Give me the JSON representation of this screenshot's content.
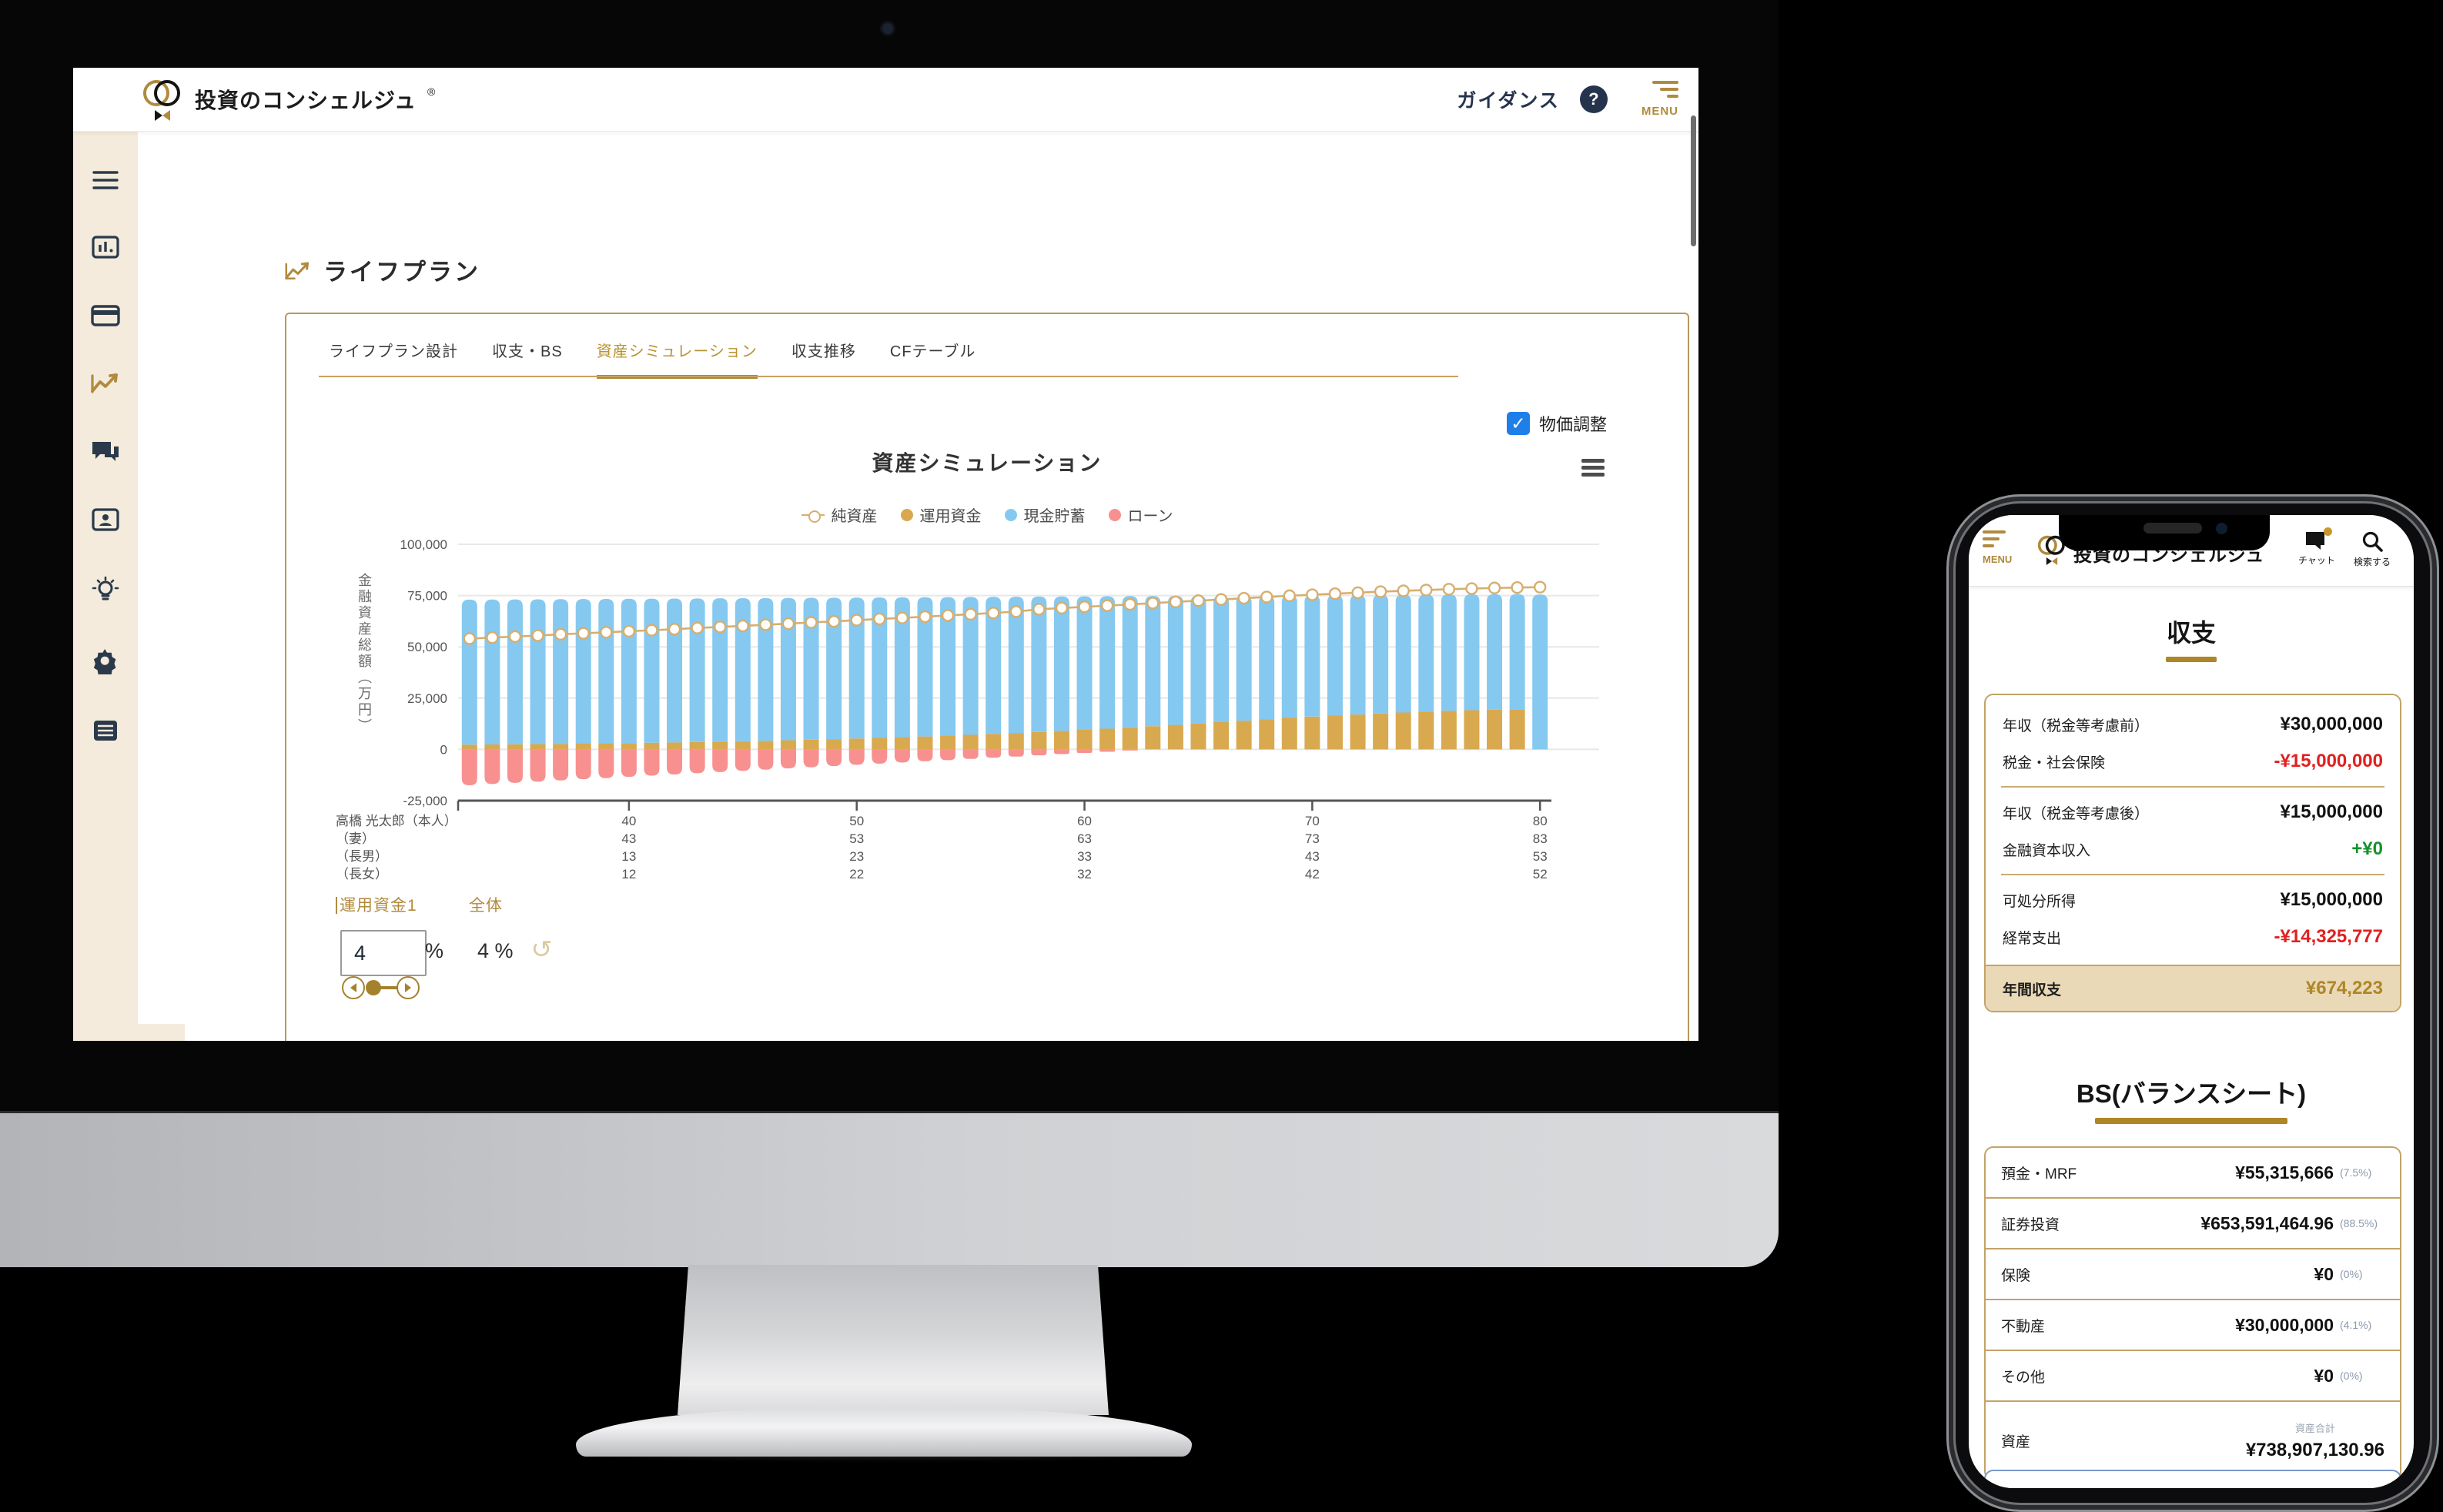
{
  "desktop": {
    "header": {
      "brand": "投資のコンシェルジュ",
      "reg_mark": "®",
      "guidance": "ガイダンス",
      "help": "?",
      "menu": "MENU"
    },
    "page_title": "ライフプラン",
    "tabs": [
      "ライフプラン設計",
      "収支・BS",
      "資産シミュレーション",
      "収支推移",
      "CFテーブル"
    ],
    "active_tab": "資産シミュレーション",
    "price_adjust": "物価調整",
    "check_glyph": "✓",
    "controls": {
      "fund_label": "運用資金1",
      "overall_label": "全体",
      "fund_value": "4",
      "unit": "%",
      "overall_value": "4 %",
      "undo_glyph": "↺"
    }
  },
  "chart_data": {
    "type": "bar",
    "title": "資産シミュレーション",
    "ylabel": "金融資産総額（万円）",
    "ylim": [
      -25000,
      100000
    ],
    "yticks": [
      100000,
      75000,
      50000,
      25000,
      0,
      -25000
    ],
    "grid": true,
    "legend_position": "top",
    "legend": [
      "純資産",
      "運用資金",
      "現金貯蓄",
      "ローン"
    ],
    "ages": [
      33,
      34,
      35,
      36,
      37,
      38,
      39,
      40,
      41,
      42,
      43,
      44,
      45,
      46,
      47,
      48,
      49,
      50,
      51,
      52,
      53,
      54,
      55,
      56,
      57,
      58,
      59,
      60,
      61,
      62,
      63,
      64,
      65,
      66,
      67,
      68,
      69,
      70,
      71,
      72,
      73,
      74,
      75,
      76,
      77,
      78,
      79,
      80
    ],
    "xticks": [
      40,
      50,
      60,
      70,
      80
    ],
    "x_rows": [
      {
        "label": "高橋 光太郎（本人）",
        "values": [
          40,
          50,
          60,
          70,
          80
        ]
      },
      {
        "label": "（妻）",
        "values": [
          43,
          53,
          63,
          73,
          83
        ]
      },
      {
        "label": "（長男）",
        "values": [
          13,
          23,
          33,
          43,
          53
        ]
      },
      {
        "label": "（長女）",
        "values": [
          12,
          22,
          32,
          42,
          52
        ]
      }
    ],
    "series": [
      {
        "name": "純資産",
        "type": "line",
        "color": "#d7ae6e",
        "values": [
          54000,
          54500,
          55000,
          55500,
          56100,
          56600,
          57100,
          57600,
          58100,
          58600,
          59200,
          59700,
          60200,
          60800,
          61300,
          61900,
          62400,
          63000,
          63600,
          64100,
          64700,
          65300,
          65900,
          66500,
          67200,
          68300,
          68900,
          69500,
          70100,
          70700,
          71300,
          71900,
          72500,
          73100,
          73700,
          74300,
          74900,
          75400,
          75900,
          76400,
          76900,
          77300,
          77700,
          78100,
          78400,
          78700,
          78900,
          79100
        ]
      },
      {
        "name": "運用資金",
        "type": "bar",
        "color": "#d9a94f",
        "values": [
          2300,
          2400,
          2500,
          2600,
          2700,
          2800,
          2950,
          3100,
          3250,
          3400,
          3600,
          3800,
          4000,
          4200,
          4450,
          4700,
          5000,
          5300,
          5600,
          5950,
          6300,
          6700,
          7100,
          7550,
          8000,
          8500,
          9000,
          9550,
          10100,
          10700,
          11300,
          11950,
          12600,
          13300,
          14000,
          14750,
          15500,
          16000,
          16500,
          17000,
          17500,
          18000,
          18400,
          18800,
          19100,
          19400,
          19600,
          0
        ]
      },
      {
        "name": "現金貯蓄",
        "type": "bar",
        "color": "#85c9f0",
        "values": [
          70700,
          70660,
          70620,
          70580,
          70540,
          70500,
          70410,
          70320,
          70230,
          70140,
          70000,
          69860,
          69720,
          69580,
          69390,
          69200,
          68960,
          68720,
          68480,
          68190,
          67900,
          67560,
          67220,
          66830,
          66440,
          66000,
          65560,
          65070,
          64580,
          64040,
          63500,
          62910,
          62320,
          61680,
          61040,
          60350,
          59660,
          59220,
          58780,
          58340,
          57900,
          57460,
          57120,
          56780,
          56540,
          56300,
          56160,
          75500
        ]
      },
      {
        "name": "ローン",
        "type": "bar",
        "color": "#f89090",
        "values": [
          -17500,
          -16900,
          -16300,
          -15750,
          -15150,
          -14550,
          -14000,
          -13400,
          -12800,
          -12250,
          -11650,
          -11050,
          -10500,
          -9900,
          -9300,
          -8750,
          -8150,
          -7550,
          -7000,
          -6400,
          -5800,
          -5250,
          -4650,
          -4050,
          -3500,
          -2900,
          -2300,
          -1750,
          -1150,
          -550,
          0,
          0,
          0,
          0,
          0,
          0,
          0,
          0,
          0,
          0,
          0,
          0,
          0,
          0,
          0,
          0,
          0,
          0
        ]
      }
    ]
  },
  "phone": {
    "menu": "MENU",
    "brand": "投資のコンシェルジュ",
    "chat": "チャット",
    "search": "検索する",
    "income": {
      "title": "収支",
      "rows": [
        {
          "label": "年収（税金等考慮前）",
          "value": "¥30,000,000",
          "tone": "plain"
        },
        {
          "label": "税金・社会保険",
          "value": "-¥15,000,000",
          "tone": "neg"
        },
        {
          "label": "年収（税金等考慮後）",
          "value": "¥15,000,000",
          "tone": "plain"
        },
        {
          "label": "金融資本収入",
          "value": "+¥0",
          "tone": "pos"
        },
        {
          "label": "可処分所得",
          "value": "¥15,000,000",
          "tone": "plain"
        },
        {
          "label": "経常支出",
          "value": "-¥14,325,777",
          "tone": "neg"
        }
      ],
      "total": {
        "label": "年間収支",
        "value": "¥674,223"
      }
    },
    "bs": {
      "title": "BS(バランスシート)",
      "rows": [
        {
          "label": "預金・MRF",
          "value": "¥55,315,666",
          "pct": "(7.5%)"
        },
        {
          "label": "証券投資",
          "value": "¥653,591,464.96",
          "pct": "(88.5%)"
        },
        {
          "label": "保険",
          "value": "¥0",
          "pct": "(0%)"
        },
        {
          "label": "不動産",
          "value": "¥30,000,000",
          "pct": "(4.1%)"
        },
        {
          "label": "その他",
          "value": "¥0",
          "pct": "(0%)"
        }
      ],
      "total": {
        "caption": "資産合計",
        "label": "資産",
        "value": "¥738,907,130.96"
      }
    }
  },
  "colors": {
    "accent_gold": "#b08a3e",
    "bar_blue": "#85c9f0",
    "bar_gold": "#d9a94f",
    "bar_red": "#f89090",
    "line_gold": "#d7ae6e",
    "checkbox_blue": "#1f7fe8",
    "negative_red": "#e02020",
    "positive_green": "#15922e",
    "pct_gray": "#8d99ae"
  }
}
